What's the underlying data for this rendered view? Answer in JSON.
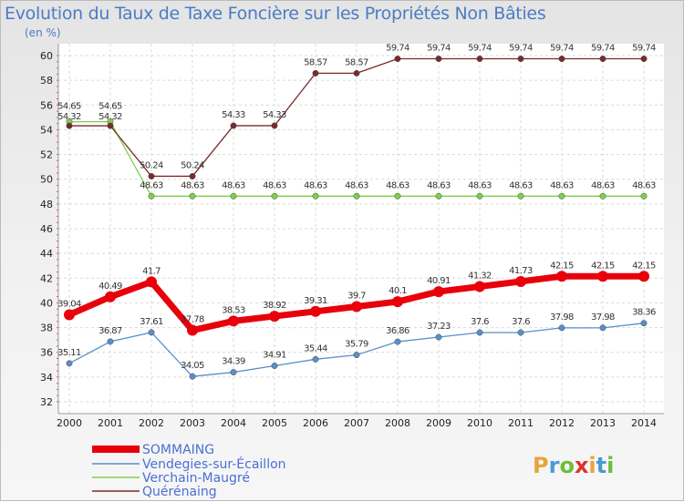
{
  "header": {
    "title": "Evolution du Taux de Taxe Foncière sur les Propriétés Non Bâties",
    "unit": "(en %)"
  },
  "brand": {
    "name": "Proxiti",
    "letters": [
      "P",
      "r",
      "o",
      "x",
      "i",
      "t",
      "i"
    ],
    "colors": [
      "#e8a43a",
      "#4a9ad4",
      "#6cbf3a",
      "#e0322a",
      "#e8a43a",
      "#4a9ad4",
      "#6cbf3a"
    ]
  },
  "chart_data": {
    "type": "line",
    "title": "Evolution du Taux de Taxe Foncière sur les Propriétés Non Bâties",
    "ylabel": "(en %)",
    "xlabel": "",
    "categories": [
      "2000",
      "2001",
      "2002",
      "2003",
      "2004",
      "2005",
      "2006",
      "2007",
      "2008",
      "2009",
      "2010",
      "2011",
      "2012",
      "2013",
      "2014"
    ],
    "yticks": [
      "32",
      "34",
      "36",
      "38",
      "40",
      "42",
      "44",
      "46",
      "48",
      "50",
      "52",
      "54",
      "56",
      "58",
      "60"
    ],
    "ylim": [
      32,
      60
    ],
    "grid": true,
    "legend_position": "bottom-left",
    "series": [
      {
        "name": "SOMMAING",
        "color": "#e8000b",
        "bold": true,
        "values": [
          39.04,
          40.49,
          41.7,
          37.78,
          38.53,
          38.92,
          39.31,
          39.7,
          40.1,
          40.91,
          41.32,
          41.73,
          42.15,
          42.15,
          42.15
        ],
        "labels": [
          "39.04",
          "40.49",
          "41.7",
          "37.78",
          "38.53",
          "38.92",
          "39.31",
          "39.7",
          "40.1",
          "40.91",
          "41.32",
          "41.73",
          "42.15",
          "42.15",
          "42.15"
        ]
      },
      {
        "name": "Vendegies-sur-Écaillon",
        "color": "#5a8fc8",
        "bold": false,
        "values": [
          35.11,
          36.87,
          37.61,
          34.05,
          34.39,
          34.91,
          35.44,
          35.79,
          36.86,
          37.23,
          37.6,
          37.6,
          37.98,
          37.98,
          38.36
        ],
        "labels": [
          "35.11",
          "36.87",
          "37.61",
          "34.05",
          "34.39",
          "34.91",
          "35.44",
          "35.79",
          "36.86",
          "37.23",
          "37.6",
          "37.6",
          "37.98",
          "37.98",
          "38.36"
        ]
      },
      {
        "name": "Verchain-Maugré",
        "color": "#7ed04a",
        "bold": false,
        "values": [
          54.65,
          54.65,
          48.63,
          48.63,
          48.63,
          48.63,
          48.63,
          48.63,
          48.63,
          48.63,
          48.63,
          48.63,
          48.63,
          48.63,
          48.63
        ],
        "labels": [
          "54.65",
          "54.65",
          "48.63",
          "48.63",
          "48.63",
          "48.63",
          "48.63",
          "48.63",
          "48.63",
          "48.63",
          "48.63",
          "48.63",
          "48.63",
          "48.63",
          "48.63"
        ]
      },
      {
        "name": "Quérénaing",
        "color": "#7a2a2a",
        "bold": false,
        "values": [
          54.32,
          54.32,
          50.24,
          50.24,
          54.33,
          54.33,
          58.57,
          58.57,
          59.74,
          59.74,
          59.74,
          59.74,
          59.74,
          59.74,
          59.74
        ],
        "labels": [
          "54.32",
          "54.32",
          "50.24",
          "50.24",
          "54.33",
          "54.33",
          "58.57",
          "58.57",
          "59.74",
          "59.74",
          "59.74",
          "59.74",
          "59.74",
          "59.74",
          "59.74"
        ]
      }
    ]
  }
}
